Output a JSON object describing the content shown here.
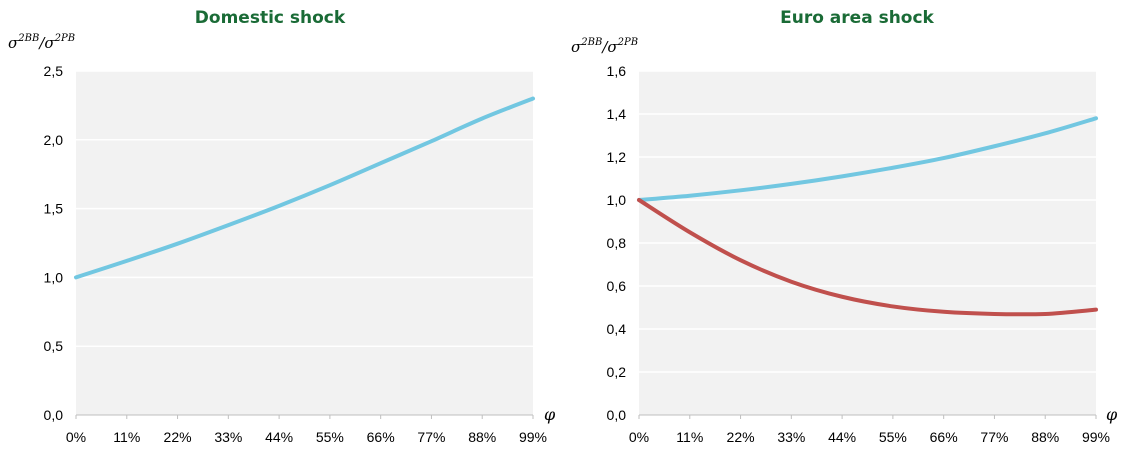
{
  "chart_data": [
    {
      "type": "line",
      "title": "Domestic shock",
      "ylabel": {
        "base": "σ",
        "sup": "2",
        "sup2": "BB",
        "sep": "/",
        "base2": "σ",
        "sup3": "2",
        "sup4": "PB"
      },
      "xlabel": "φ",
      "categories": [
        "0%",
        "11%",
        "22%",
        "33%",
        "44%",
        "55%",
        "66%",
        "77%",
        "88%",
        "99%"
      ],
      "yticks": [
        "0,0",
        "0,5",
        "1,0",
        "1,5",
        "2,0",
        "2,5"
      ],
      "ylim": [
        0,
        2.5
      ],
      "grid": true,
      "series": [
        {
          "color": "#72c7e1",
          "values": [
            1.0,
            1.12,
            1.245,
            1.38,
            1.52,
            1.67,
            1.83,
            1.99,
            2.155,
            2.3
          ]
        }
      ]
    },
    {
      "type": "line",
      "title": "Euro area shock",
      "ylabel": {
        "base": "σ",
        "sup": "2",
        "sup2": "BB",
        "sep": "/",
        "base2": "σ",
        "sup3": "2",
        "sup4": "PB"
      },
      "xlabel": "φ",
      "categories": [
        "0%",
        "11%",
        "22%",
        "33%",
        "44%",
        "55%",
        "66%",
        "77%",
        "88%",
        "99%"
      ],
      "yticks": [
        "0,0",
        "0,2",
        "0,4",
        "0,6",
        "0,8",
        "1,0",
        "1,2",
        "1,4",
        "1,6"
      ],
      "ylim": [
        0,
        1.6
      ],
      "grid": true,
      "series": [
        {
          "color": "#72c7e1",
          "values": [
            1.0,
            1.02,
            1.045,
            1.075,
            1.11,
            1.15,
            1.195,
            1.25,
            1.31,
            1.38
          ]
        },
        {
          "color": "#c0504d",
          "values": [
            1.0,
            0.85,
            0.72,
            0.62,
            0.55,
            0.505,
            0.48,
            0.47,
            0.47,
            0.49
          ]
        }
      ]
    }
  ]
}
